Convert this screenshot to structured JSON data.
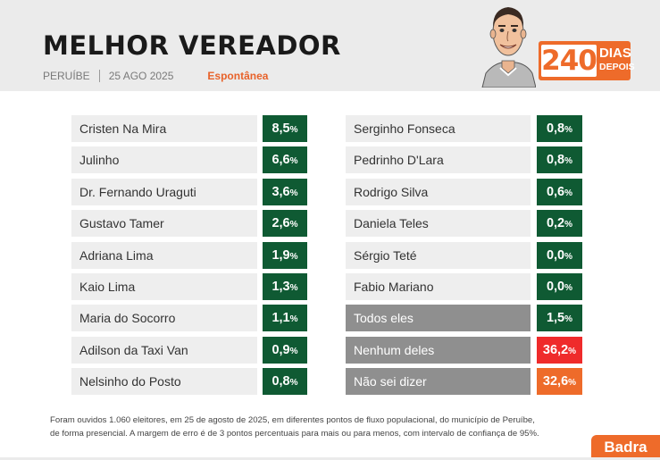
{
  "header": {
    "title": "MELHOR VEREADOR",
    "city": "PERUÍBE",
    "date": "25 AGO 2025",
    "survey_type": "Espontânea"
  },
  "badge": {
    "number": "240",
    "word1": "DIAS",
    "word2": "DEPOIS"
  },
  "colors": {
    "positive": "#0f5a33",
    "neutral": "#8f8f8f",
    "red": "#ef2b2b",
    "orange": "#ee6b2a"
  },
  "chart_data": {
    "type": "table",
    "unit": "%",
    "columns": [
      [
        {
          "name": "Cristen Na Mira",
          "value": "8,5",
          "kind": "candidate"
        },
        {
          "name": "Julinho",
          "value": "6,6",
          "kind": "candidate"
        },
        {
          "name": "Dr. Fernando Uraguti",
          "value": "3,6",
          "kind": "candidate"
        },
        {
          "name": "Gustavo Tamer",
          "value": "2,6",
          "kind": "candidate"
        },
        {
          "name": "Adriana Lima",
          "value": "1,9",
          "kind": "candidate"
        },
        {
          "name": "Kaio Lima",
          "value": "1,3",
          "kind": "candidate"
        },
        {
          "name": "Maria do Socorro",
          "value": "1,1",
          "kind": "candidate"
        },
        {
          "name": "Adilson da Taxi Van",
          "value": "0,9",
          "kind": "candidate"
        },
        {
          "name": "Nelsinho do Posto",
          "value": "0,8",
          "kind": "candidate"
        }
      ],
      [
        {
          "name": "Serginho Fonseca",
          "value": "0,8",
          "kind": "candidate"
        },
        {
          "name": "Pedrinho D'Lara",
          "value": "0,8",
          "kind": "candidate"
        },
        {
          "name": "Rodrigo Silva",
          "value": "0,6",
          "kind": "candidate"
        },
        {
          "name": "Daniela Teles",
          "value": "0,2",
          "kind": "candidate"
        },
        {
          "name": "Sérgio Teté",
          "value": "0,0",
          "kind": "candidate"
        },
        {
          "name": "Fabio Mariano",
          "value": "0,0",
          "kind": "candidate"
        },
        {
          "name": "Todos eles",
          "value": "1,5",
          "kind": "all"
        },
        {
          "name": "Nenhum deles",
          "value": "36,2",
          "kind": "none"
        },
        {
          "name": "Não sei dizer",
          "value": "32,6",
          "kind": "unknown"
        }
      ]
    ]
  },
  "footnote": {
    "line1": "Foram ouvidos 1.060 eleitores, em 25 de agosto de 2025, em diferentes pontos de fluxo populacional, do município de Peruíbe,",
    "line2": "de forma presencial. A margem de erro é de 3 pontos percentuais para mais ou para menos, com intervalo de confiança de 95%."
  },
  "brand": "Badra"
}
